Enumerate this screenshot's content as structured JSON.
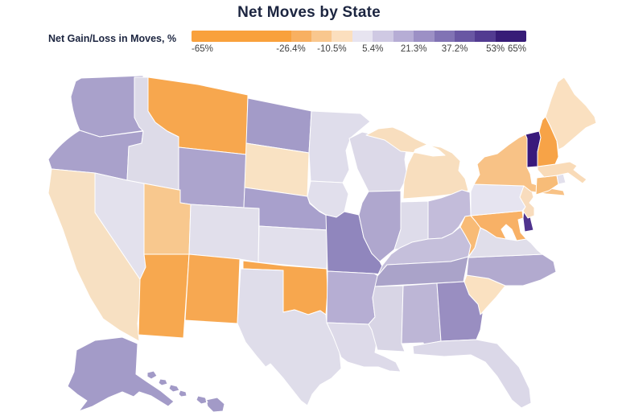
{
  "title": "Net Moves by State",
  "colors": {
    "title_text": "#1c2540",
    "tick_text": "#3f3f3f",
    "state_border": "#ffffff",
    "background": "#ffffff"
  },
  "legend": {
    "label": "Net Gain/Loss in Moves, %",
    "boundaries": [
      -65,
      -26.4,
      -18.45,
      -10.5,
      -2.55,
      5.4,
      13.35,
      21.3,
      29.25,
      37.2,
      45.15,
      53,
      65
    ],
    "segment_colors": [
      "#F9A13C",
      "#F8B061",
      "#F9C78E",
      "#FBDFBE",
      "#E7E4F0",
      "#CFC9E3",
      "#B6ADD5",
      "#9C90C5",
      "#8173B4",
      "#6957A3",
      "#523B91",
      "#371C77"
    ],
    "ticks": [
      {
        "label": "-65%",
        "value": -65
      },
      {
        "label": "-26.4%",
        "value": -26.4
      },
      {
        "label": "-10.5%",
        "value": -10.5
      },
      {
        "label": "5.4%",
        "value": 5.4
      },
      {
        "label": "21.3%",
        "value": 21.3
      },
      {
        "label": "37.2%",
        "value": 37.2
      },
      {
        "label": "53%",
        "value": 53
      },
      {
        "label": "65%",
        "value": 65
      }
    ]
  },
  "chart_data": {
    "type": "heatmap",
    "subtype": "us-choropleth",
    "title": "Net Moves by State",
    "legend_label": "Net Gain/Loss in Moves, %",
    "scale_range_pct": [
      -65,
      65
    ],
    "scale_tick_values_pct": [
      -65,
      -26.4,
      -10.5,
      5.4,
      21.3,
      37.2,
      53,
      65
    ],
    "legend_position": "top",
    "states": [
      {
        "id": "WA",
        "name": "Washington",
        "value_pct": 17,
        "color": "#A9A1CB"
      },
      {
        "id": "OR",
        "name": "Oregon",
        "value_pct": 17,
        "color": "#A9A1CB"
      },
      {
        "id": "CA",
        "name": "California",
        "value_pct": -6,
        "color": "#F7E0C2"
      },
      {
        "id": "NV",
        "name": "Nevada",
        "value_pct": 1,
        "color": "#E3E1ED"
      },
      {
        "id": "ID",
        "name": "Idaho",
        "value_pct": 1,
        "color": "#DDDBE8"
      },
      {
        "id": "MT",
        "name": "Montana",
        "value_pct": -45,
        "color": "#F7A74E"
      },
      {
        "id": "WY",
        "name": "Wyoming",
        "value_pct": 15,
        "color": "#ACA4CD"
      },
      {
        "id": "UT",
        "name": "Utah",
        "value_pct": -14,
        "color": "#F8C88E"
      },
      {
        "id": "CO",
        "name": "Colorado",
        "value_pct": 1,
        "color": "#E1DFEB"
      },
      {
        "id": "AZ",
        "name": "Arizona",
        "value_pct": -45,
        "color": "#F7A84F"
      },
      {
        "id": "NM",
        "name": "New Mexico",
        "value_pct": -45,
        "color": "#F7A851"
      },
      {
        "id": "ND",
        "name": "North Dakota",
        "value_pct": 21,
        "color": "#A39BC8"
      },
      {
        "id": "SD",
        "name": "South Dakota",
        "value_pct": -6,
        "color": "#F9E2C3"
      },
      {
        "id": "NE",
        "name": "Nebraska",
        "value_pct": 21,
        "color": "#A8A0CC"
      },
      {
        "id": "KS",
        "name": "Kansas",
        "value_pct": 1,
        "color": "#E2E0EC"
      },
      {
        "id": "OK",
        "name": "Oklahoma",
        "value_pct": -45,
        "color": "#F7A74E"
      },
      {
        "id": "TX",
        "name": "Texas",
        "value_pct": 1,
        "color": "#DFDDEA"
      },
      {
        "id": "MN",
        "name": "Minnesota",
        "value_pct": 1,
        "color": "#DFDDEB"
      },
      {
        "id": "IA",
        "name": "Iowa",
        "value_pct": 1,
        "color": "#E1DFEC"
      },
      {
        "id": "MO",
        "name": "Missouri",
        "value_pct": 31,
        "color": "#9086BD"
      },
      {
        "id": "AR",
        "name": "Arkansas",
        "value_pct": 15,
        "color": "#B6AED3"
      },
      {
        "id": "LA",
        "name": "Louisiana",
        "value_pct": 1,
        "color": "#DDDAE9"
      },
      {
        "id": "WI",
        "name": "Wisconsin",
        "value_pct": 1,
        "color": "#DCD9E8"
      },
      {
        "id": "MI",
        "name": "Michigan",
        "value_pct": -6,
        "color": "#F8DEBE"
      },
      {
        "id": "IL",
        "name": "Illinois",
        "value_pct": 15,
        "color": "#AFA7CE"
      },
      {
        "id": "IN",
        "name": "Indiana",
        "value_pct": 1,
        "color": "#DEDCEA"
      },
      {
        "id": "OH",
        "name": "Ohio",
        "value_pct": 8,
        "color": "#C3BCDA"
      },
      {
        "id": "KY",
        "name": "Kentucky",
        "value_pct": 8,
        "color": "#C5BFDB"
      },
      {
        "id": "TN",
        "name": "Tennessee",
        "value_pct": 15,
        "color": "#AAA3C9"
      },
      {
        "id": "MS",
        "name": "Mississippi",
        "value_pct": 2,
        "color": "#D8D5E5"
      },
      {
        "id": "AL",
        "name": "Alabama",
        "value_pct": 10,
        "color": "#BDB6D6"
      },
      {
        "id": "GA",
        "name": "Georgia",
        "value_pct": 25,
        "color": "#998EC1"
      },
      {
        "id": "FL",
        "name": "Florida",
        "value_pct": 2,
        "color": "#DBD8E8"
      },
      {
        "id": "SC",
        "name": "South Carolina",
        "value_pct": -6,
        "color": "#FAE1C1"
      },
      {
        "id": "NC",
        "name": "North Carolina",
        "value_pct": 15,
        "color": "#B2AACF"
      },
      {
        "id": "VA",
        "name": "Virginia",
        "value_pct": 1,
        "color": "#E0DEEA"
      },
      {
        "id": "WV",
        "name": "West Virginia",
        "value_pct": -21,
        "color": "#F8BB76"
      },
      {
        "id": "MD",
        "name": "Maryland",
        "value_pct": -22,
        "color": "#F8B166"
      },
      {
        "id": "DE",
        "name": "Delaware",
        "value_pct": 49,
        "color": "#4F338E"
      },
      {
        "id": "NJ",
        "name": "New Jersey",
        "value_pct": -6,
        "color": "#F8DCBD"
      },
      {
        "id": "PA",
        "name": "Pennsylvania",
        "value_pct": 1,
        "color": "#E6E4F0"
      },
      {
        "id": "NY",
        "name": "New York",
        "value_pct": -14,
        "color": "#F8C286"
      },
      {
        "id": "CT",
        "name": "Connecticut",
        "value_pct": -20,
        "color": "#F7BC78"
      },
      {
        "id": "RI",
        "name": "Rhode Island",
        "value_pct": 1,
        "color": "#E2E0EC"
      },
      {
        "id": "MA",
        "name": "Massachusetts",
        "value_pct": -7,
        "color": "#F9DBB8"
      },
      {
        "id": "VT",
        "name": "Vermont",
        "value_pct": 58,
        "color": "#39197B"
      },
      {
        "id": "NH",
        "name": "New Hampshire",
        "value_pct": -44,
        "color": "#F7A347"
      },
      {
        "id": "ME",
        "name": "Maine",
        "value_pct": -6,
        "color": "#FAE0C0"
      },
      {
        "id": "AK",
        "name": "Alaska",
        "value_pct": 20,
        "color": "#A39BC8"
      },
      {
        "id": "HI",
        "name": "Hawaii",
        "value_pct": 20,
        "color": "#A29AC7"
      }
    ]
  }
}
